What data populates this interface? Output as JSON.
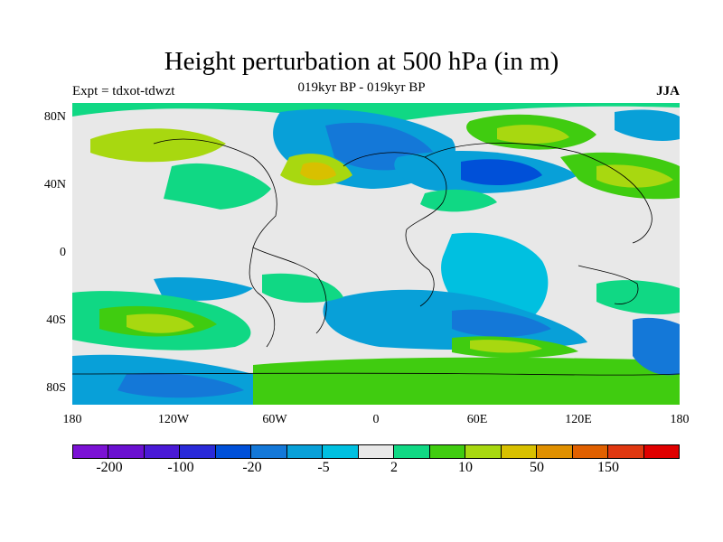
{
  "header": {
    "title": "Height perturbation at 500 hPa (in m)",
    "subtitle": "019kyr BP - 019kyr BP",
    "experiment": "Expt = tdxot-tdwzt",
    "season": "JJA"
  },
  "axes": {
    "y_labels": [
      "80N",
      "40N",
      "0",
      "40S",
      "80S"
    ],
    "x_labels": [
      "180",
      "120W",
      "60W",
      "0",
      "60E",
      "120E",
      "180"
    ]
  },
  "colorbar": {
    "colors": [
      "#7B12D4",
      "#6A10D0",
      "#4A1AD6",
      "#2A2AD8",
      "#0050D8",
      "#1478D8",
      "#08A0D8",
      "#00C0E0",
      "#E8E8E8",
      "#10D884",
      "#40CC10",
      "#A8D810",
      "#D8C000",
      "#E09000",
      "#E06000",
      "#E03810",
      "#E00000"
    ],
    "labels": [
      "-200",
      "-100",
      "-20",
      "-5",
      "2",
      "10",
      "50",
      "150"
    ]
  },
  "palette": {
    "ocean_neutral": "#E8E8E8",
    "light_blue": "#00C0E0",
    "blue": "#08A0D8",
    "mid_blue": "#1478D8",
    "deep_blue": "#0050D8",
    "green": "#10D884",
    "bright_green": "#40CC10",
    "yellow_green": "#A8D810",
    "gold": "#D8C000"
  }
}
